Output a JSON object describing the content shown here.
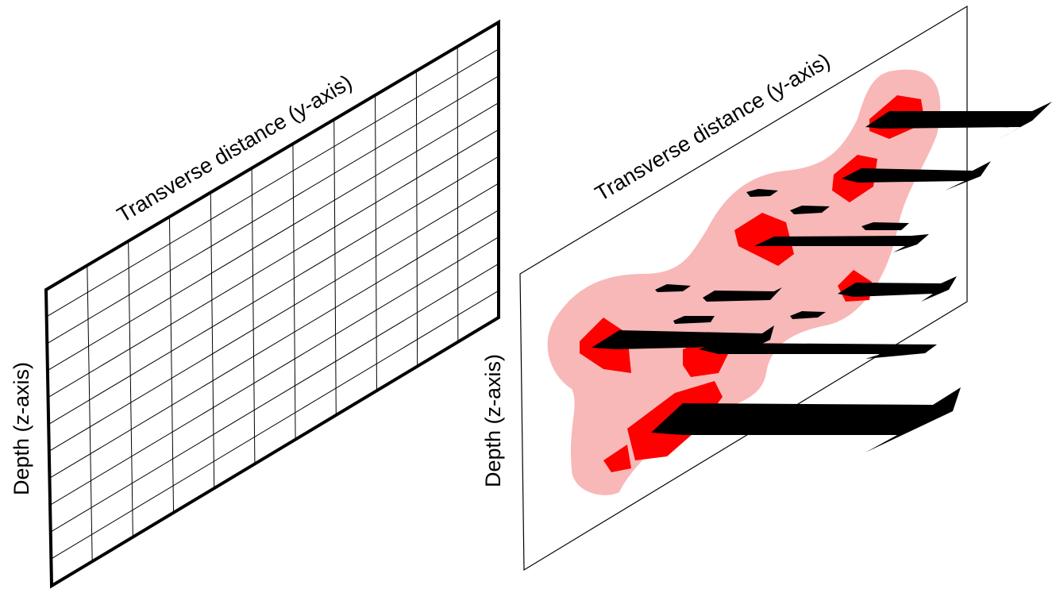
{
  "panels": [
    {
      "x_label": "Transverse distance (y-axis)",
      "y_label": "Depth (z-axis)"
    },
    {
      "x_label": "Transverse distance (y-axis)",
      "y_label": "Depth (z-axis)"
    }
  ]
}
